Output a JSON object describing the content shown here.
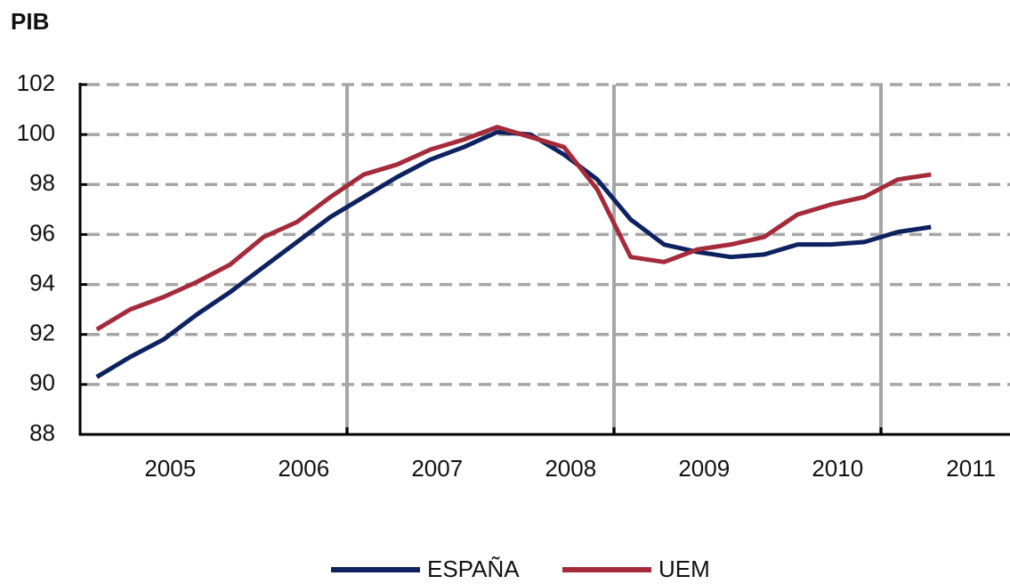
{
  "chart_data": {
    "type": "line",
    "title": "PIB",
    "categories": [
      null,
      "2005",
      null,
      null,
      null,
      "2006",
      null,
      null,
      null,
      "2007",
      null,
      null,
      null,
      "2008",
      null,
      null,
      null,
      "2009",
      null,
      null,
      null,
      "2010",
      null,
      null,
      null,
      "2011"
    ],
    "series": [
      {
        "name": "ESPAÑA",
        "color": "#0d2260",
        "values": [
          90.3,
          91.1,
          91.8,
          92.8,
          93.7,
          94.7,
          95.7,
          96.7,
          97.5,
          98.3,
          99.0,
          99.5,
          100.1,
          100.0,
          99.2,
          98.2,
          96.6,
          95.6,
          95.3,
          95.1,
          95.2,
          95.6,
          95.6,
          95.7,
          96.1,
          96.3
        ]
      },
      {
        "name": "UEM",
        "color": "#a52a3a",
        "values": [
          92.2,
          93.0,
          93.5,
          94.1,
          94.8,
          95.9,
          96.5,
          97.5,
          98.4,
          98.8,
          99.4,
          99.8,
          100.3,
          99.9,
          99.5,
          97.8,
          95.1,
          94.9,
          95.4,
          95.6,
          95.9,
          96.8,
          97.2,
          97.5,
          98.2,
          98.4
        ]
      }
    ],
    "ylim": [
      88,
      102
    ],
    "yticks": [
      88,
      90,
      92,
      94,
      96,
      98,
      100,
      102
    ],
    "grid": true
  }
}
